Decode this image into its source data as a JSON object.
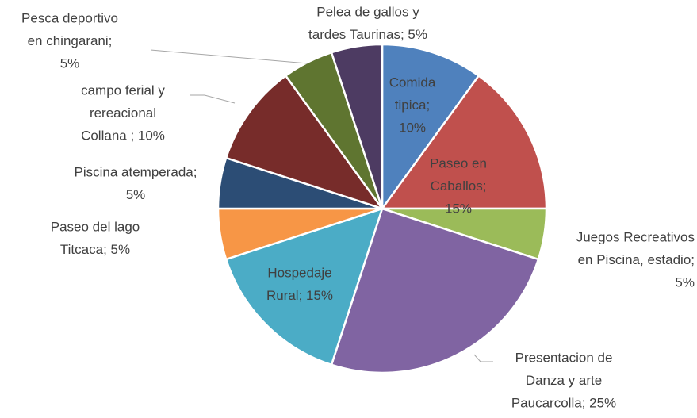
{
  "chart_data": {
    "type": "pie",
    "values": [
      10,
      15,
      5,
      25,
      15,
      5,
      5,
      10,
      5,
      5
    ],
    "value_labels": [
      [
        "Comida",
        "tipica;",
        "10%"
      ],
      [
        "Paseo en",
        "Caballos;",
        "15%"
      ],
      [
        "Juegos Recreativos",
        "en Piscina, estadio;",
        "5%"
      ],
      [
        "Presentacion de",
        "Danza y arte",
        "Paucarcolla; 25%"
      ],
      [
        "Hospedaje",
        "Rural; 15%"
      ],
      [
        "Paseo del lago",
        "Titcaca; 5%"
      ],
      [
        "Piscina atemperada;",
        "5%"
      ],
      [
        "campo  ferial y",
        "rereacional",
        "Collana ; 10%"
      ],
      [
        "Pesca deportivo",
        "en chingarani;",
        "5%"
      ],
      [
        "Pelea de gallos y",
        "tardes Taurinas; 5%"
      ]
    ],
    "colors": [
      "#4f81bd",
      "#c0504d",
      "#9bbb59",
      "#8064a2",
      "#4bacc6",
      "#f79646",
      "#2c4d75",
      "#772c2a",
      "#5f7530",
      "#4d3b62"
    ]
  }
}
